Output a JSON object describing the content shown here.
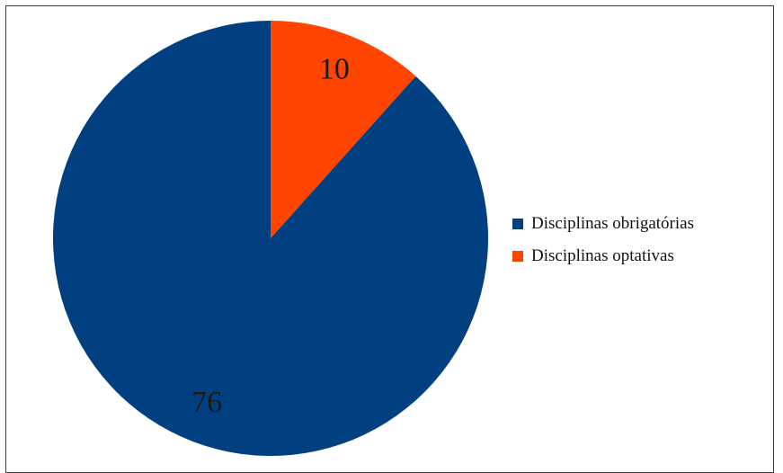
{
  "chart_data": {
    "type": "pie",
    "categories": [
      "Disciplinas obrigatórias",
      "Disciplinas optativas"
    ],
    "values": [
      76,
      10
    ],
    "colors": [
      "#003f80",
      "#ff4500"
    ],
    "value_labels": [
      "76",
      "10"
    ],
    "legend_position": "right",
    "start_angle_deg": 0,
    "direction": "clockwise"
  },
  "legend": {
    "items": [
      {
        "label": "Disciplinas obrigatórias",
        "color": "#003f80"
      },
      {
        "label": "Disciplinas optativas",
        "color": "#ff4500"
      }
    ]
  }
}
